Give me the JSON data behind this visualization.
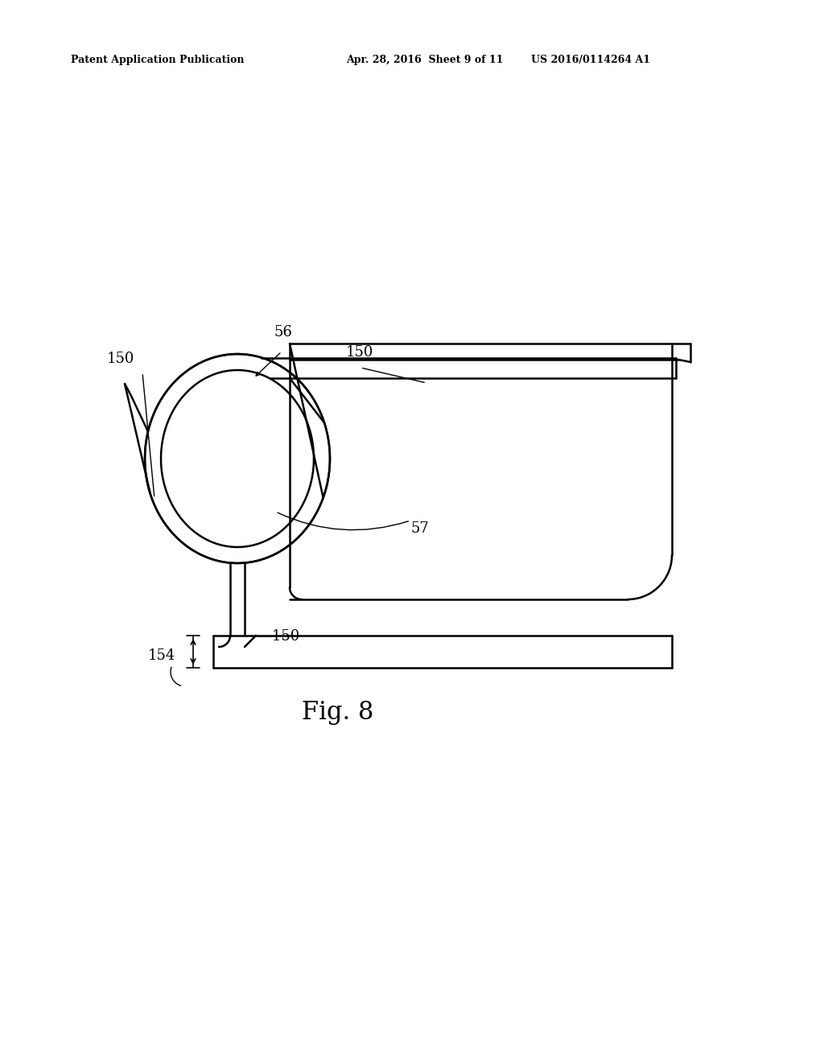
{
  "background_color": "#ffffff",
  "line_color": "#000000",
  "lw": 1.8,
  "lw_thin": 1.2,
  "header_left": "Patent Application Publication",
  "header_center": "Apr. 28, 2016  Sheet 9 of 11",
  "header_right": "US 2016/0114264 A1",
  "fig_label": "Fig. 8"
}
